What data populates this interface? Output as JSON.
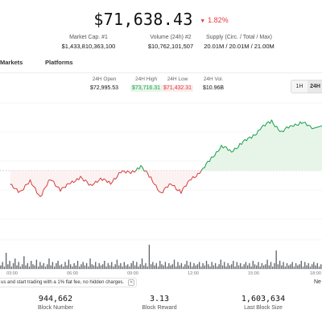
{
  "header": {
    "price": "$71,638.43",
    "change_arrow": "▼",
    "change": "1.82%",
    "change_color": "#ea3943"
  },
  "stats": [
    {
      "label": "Market Cap. #1",
      "value": "$1,433,810,363,100"
    },
    {
      "label": "Volume (24h) #2",
      "value": "$10,762,101,507"
    },
    {
      "label": "Supply (Circ. / Total / Max)",
      "value": "20.01M / 20.01M / 21.00M"
    }
  ],
  "tabs": [
    {
      "label": "Markets"
    },
    {
      "label": "Platforms"
    }
  ],
  "ticker": {
    "open": {
      "label": "24H Open",
      "value": "$72,995.53"
    },
    "high": {
      "label": "24H High",
      "value": "$73,716.31"
    },
    "low": {
      "label": "24H Low",
      "value": "$71,432.31"
    },
    "vol": {
      "label": "24H Vol.",
      "value": "$10.96B"
    }
  },
  "range_toggle": {
    "options": [
      "1H",
      "24H"
    ],
    "selected": "24H"
  },
  "colors": {
    "up": "#17a04a",
    "down": "#d63b3b",
    "area": "#e7f5e9"
  },
  "chart_data": {
    "type": "line",
    "x_tick_labels": [
      "03:00",
      "06:00",
      "09:00",
      "12:00",
      "15:00",
      "18:00"
    ],
    "reference_price": "$72,995.53",
    "price_series": [
      {
        "t": 1,
        "v": 72540
      },
      {
        "t": 2,
        "v": 72440
      },
      {
        "t": 3,
        "v": 72600
      },
      {
        "t": 4,
        "v": 72360
      },
      {
        "t": 5,
        "v": 72640
      },
      {
        "t": 6,
        "v": 72480
      },
      {
        "t": 7,
        "v": 72560
      },
      {
        "t": 8,
        "v": 72700
      },
      {
        "t": 9,
        "v": 72520
      },
      {
        "t": 10,
        "v": 72680
      },
      {
        "t": 11,
        "v": 72560
      },
      {
        "t": 12,
        "v": 72800
      },
      {
        "t": 13,
        "v": 72740
      },
      {
        "t": 14,
        "v": 72890
      },
      {
        "t": 15,
        "v": 72650
      },
      {
        "t": 16,
        "v": 72420
      },
      {
        "t": 17,
        "v": 72560
      },
      {
        "t": 18,
        "v": 72440
      },
      {
        "t": 19,
        "v": 72640
      },
      {
        "t": 20,
        "v": 72800
      },
      {
        "t": 21,
        "v": 73000
      },
      {
        "t": 22,
        "v": 73240
      },
      {
        "t": 23,
        "v": 73120
      },
      {
        "t": 24,
        "v": 73290
      },
      {
        "t": 25,
        "v": 73370
      },
      {
        "t": 26,
        "v": 73560
      },
      {
        "t": 27,
        "v": 73650
      },
      {
        "t": 28,
        "v": 73480
      },
      {
        "t": 29,
        "v": 73580
      },
      {
        "t": 30,
        "v": 73650
      },
      {
        "t": 31,
        "v": 73530
      }
    ],
    "volume_series": [
      3,
      6,
      2,
      14,
      4,
      7,
      2,
      5,
      9,
      3,
      6,
      2,
      4,
      11,
      3,
      5,
      2,
      7,
      4,
      3,
      8,
      2,
      6,
      3,
      5,
      2,
      4,
      9,
      3,
      6,
      2,
      5,
      7,
      3,
      4,
      2,
      6,
      3,
      8,
      4,
      2,
      5,
      3,
      7,
      2,
      4,
      6,
      3,
      5,
      2,
      9,
      4,
      3,
      6,
      2,
      5,
      3,
      4,
      7,
      2,
      5,
      3,
      6,
      2,
      4,
      8,
      3,
      5,
      2,
      6,
      3,
      4,
      2,
      5,
      7,
      3,
      6,
      2,
      4,
      9,
      3,
      5,
      2,
      21,
      4,
      6,
      3,
      5,
      2,
      7,
      4,
      3,
      6,
      2,
      5,
      3,
      4,
      8,
      2,
      6,
      3,
      5,
      2,
      4,
      7,
      3,
      6,
      2,
      5,
      3,
      4,
      6,
      2,
      5,
      3,
      7,
      4,
      2,
      6,
      3,
      5,
      2,
      4,
      8,
      3,
      6,
      2,
      5,
      3,
      4,
      7,
      2,
      6,
      3,
      5,
      2,
      4,
      6,
      3,
      5,
      2,
      7,
      4,
      3,
      6,
      2,
      5,
      3,
      4,
      8,
      3,
      6,
      2,
      5,
      16,
      4,
      7,
      3,
      6,
      2,
      5,
      3,
      4,
      6,
      2,
      5,
      3,
      4,
      7,
      2,
      6,
      3,
      5,
      2,
      4,
      6,
      3,
      5,
      2,
      4
    ]
  },
  "promo": {
    "text": "us and start trading with a 1% flat fee, no hidden charges.",
    "close": "✕",
    "next_label": "Ne"
  },
  "block_stats": [
    {
      "value": "944,662",
      "label": "Block Number"
    },
    {
      "value": "3.13",
      "label": "Block Reward"
    },
    {
      "value": "1,603,634",
      "label": "Last Block Size"
    }
  ]
}
